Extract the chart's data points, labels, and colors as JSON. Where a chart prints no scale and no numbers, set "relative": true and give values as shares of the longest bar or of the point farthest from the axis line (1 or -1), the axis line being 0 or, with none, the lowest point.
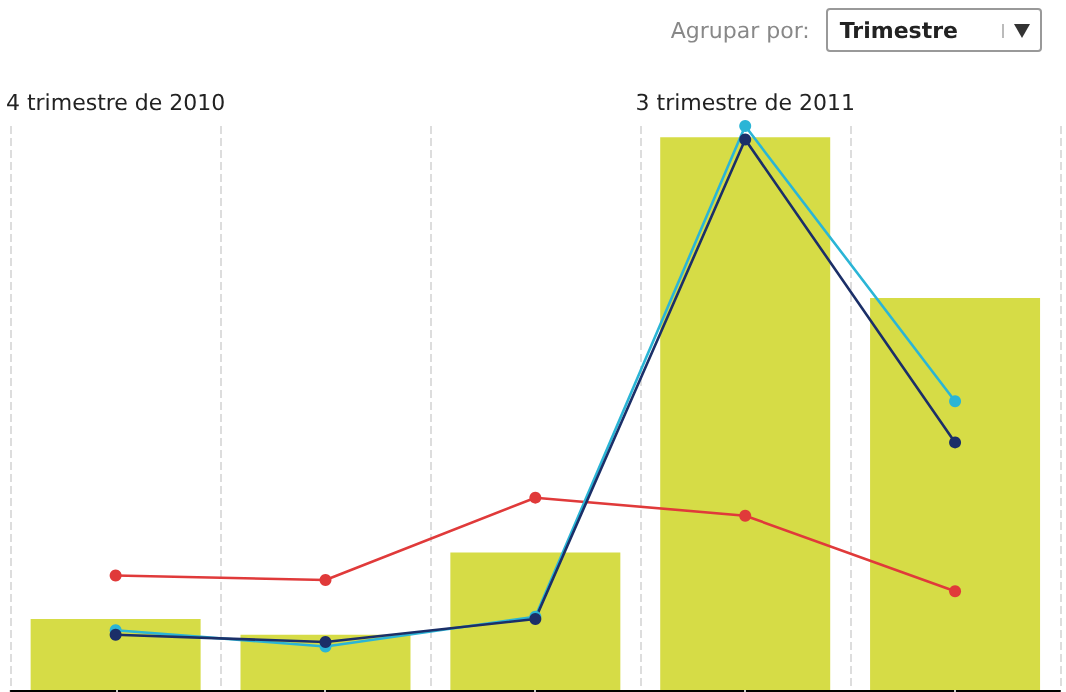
{
  "chart_data": {
    "type": "bar",
    "relative": true,
    "categories": [
      "4 trimestre de 2010",
      null,
      null,
      "3 trimestre de 2011",
      null
    ],
    "series": [
      {
        "color": "#d6dc46",
        "values": [
          0.126,
          0.098,
          0.244,
          0.98,
          0.695
        ]
      },
      {
        "type": "line",
        "color": "#e03a3a",
        "values": [
          0.203,
          0.195,
          0.341,
          0.309,
          0.175
        ]
      },
      {
        "type": "line",
        "color": "#2bb5d6",
        "values": [
          0.106,
          0.077,
          0.13,
          1.0,
          0.512
        ]
      },
      {
        "type": "line",
        "color": "#1b2f68",
        "values": [
          0.098,
          0.085,
          0.126,
          0.976,
          0.439
        ]
      }
    ],
    "grid": "x",
    "marker": "circle",
    "line_style": "solid",
    "annotations": [
      "Agrupar por:",
      "Trimestre"
    ]
  }
}
